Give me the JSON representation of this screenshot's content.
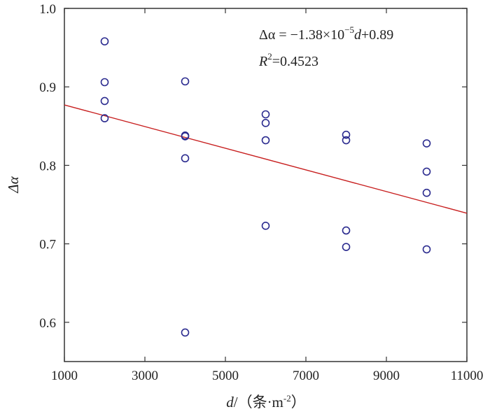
{
  "chart_data": {
    "type": "scatter",
    "xlabel_var": "d",
    "xlabel_unit": "/（条·m",
    "xlabel_unit_exp": "-2",
    "xlabel_close": "）",
    "ylabel": "Δα",
    "xlim": [
      1000,
      11000
    ],
    "ylim": [
      0.55,
      1.0
    ],
    "xticks": [
      1000,
      3000,
      5000,
      7000,
      9000,
      11000
    ],
    "xtick_labels": [
      "1000",
      "3000",
      "5000",
      "7000",
      "9000",
      "11000"
    ],
    "yticks": [
      0.6,
      0.7,
      0.8,
      0.9,
      1.0
    ],
    "ytick_labels": [
      "0.6",
      "0.7",
      "0.8",
      "0.9",
      "1.0"
    ],
    "grid": false,
    "points": [
      {
        "x": 2000,
        "y": 0.958
      },
      {
        "x": 2000,
        "y": 0.906
      },
      {
        "x": 2000,
        "y": 0.882
      },
      {
        "x": 2000,
        "y": 0.86
      },
      {
        "x": 4000,
        "y": 0.907
      },
      {
        "x": 4000,
        "y": 0.838
      },
      {
        "x": 4000,
        "y": 0.837
      },
      {
        "x": 4000,
        "y": 0.809
      },
      {
        "x": 4000,
        "y": 0.587
      },
      {
        "x": 6000,
        "y": 0.865
      },
      {
        "x": 6000,
        "y": 0.854
      },
      {
        "x": 6000,
        "y": 0.832
      },
      {
        "x": 6000,
        "y": 0.723
      },
      {
        "x": 8000,
        "y": 0.839
      },
      {
        "x": 8000,
        "y": 0.832
      },
      {
        "x": 8000,
        "y": 0.717
      },
      {
        "x": 8000,
        "y": 0.696
      },
      {
        "x": 10000,
        "y": 0.828
      },
      {
        "x": 10000,
        "y": 0.792
      },
      {
        "x": 10000,
        "y": 0.765
      },
      {
        "x": 10000,
        "y": 0.693
      }
    ],
    "fit_line": {
      "x": [
        1000,
        11000
      ],
      "y": [
        0.877,
        0.739
      ]
    },
    "marker_color": "#2b2b8f",
    "line_color": "#c82020",
    "equation": {
      "prefix": "Δα = −1.38×10",
      "exp": "−5",
      "var": "d",
      "suffix": "+0.89"
    },
    "r2": {
      "var": "R",
      "exp": "2",
      "value": "=0.4523"
    }
  }
}
